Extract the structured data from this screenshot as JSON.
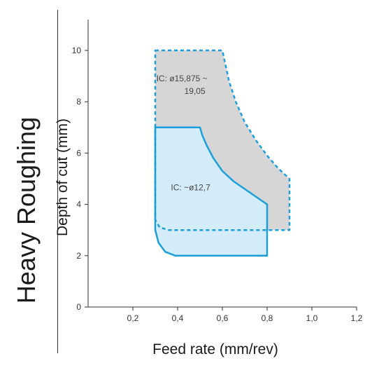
{
  "side_title": "Heavy Roughing",
  "chart_data": {
    "type": "area",
    "xlabel": "Feed rate (mm/rev)",
    "ylabel": "Depth of cut (mm)",
    "xlim": [
      0,
      1.2
    ],
    "ylim": [
      0,
      11.2
    ],
    "x_ticks": [
      0.2,
      0.4,
      0.6,
      0.8,
      1.0,
      1.2
    ],
    "x_tick_labels": [
      "0,2",
      "0,4",
      "0,6",
      "0,8",
      "1,0",
      "1,2"
    ],
    "y_ticks": [
      0,
      2,
      4,
      6,
      8,
      10
    ],
    "y_tick_labels": [
      "0",
      "2",
      "4",
      "6",
      "8",
      "10"
    ],
    "grid": false,
    "regions": [
      {
        "label_lines": [
          "IC: ø15,875 ~",
          "19,05"
        ],
        "fill": "#d6d6d6",
        "stroke": "#1a9fdb",
        "stroke_style": "dashed",
        "boundary": [
          {
            "x": 0.3,
            "y": 10.0
          },
          {
            "x": 0.6,
            "y": 10.0
          },
          {
            "x": 0.61,
            "y": 9.6
          },
          {
            "x": 0.63,
            "y": 8.8
          },
          {
            "x": 0.66,
            "y": 8.0
          },
          {
            "x": 0.7,
            "y": 7.2
          },
          {
            "x": 0.75,
            "y": 6.5
          },
          {
            "x": 0.8,
            "y": 5.9
          },
          {
            "x": 0.85,
            "y": 5.4
          },
          {
            "x": 0.9,
            "y": 5.0
          },
          {
            "x": 0.9,
            "y": 3.0
          },
          {
            "x": 0.36,
            "y": 3.0
          },
          {
            "x": 0.32,
            "y": 3.1
          },
          {
            "x": 0.3,
            "y": 3.4
          },
          {
            "x": 0.3,
            "y": 10.0
          }
        ]
      },
      {
        "label_lines": [
          "IC: ~ø12,7"
        ],
        "fill": "#d4ecf9",
        "stroke": "#1a9fdb",
        "stroke_style": "solid",
        "boundary": [
          {
            "x": 0.3,
            "y": 7.0
          },
          {
            "x": 0.5,
            "y": 7.0
          },
          {
            "x": 0.51,
            "y": 6.7
          },
          {
            "x": 0.53,
            "y": 6.3
          },
          {
            "x": 0.56,
            "y": 5.8
          },
          {
            "x": 0.6,
            "y": 5.3
          },
          {
            "x": 0.65,
            "y": 4.9
          },
          {
            "x": 0.7,
            "y": 4.6
          },
          {
            "x": 0.75,
            "y": 4.3
          },
          {
            "x": 0.8,
            "y": 4.0
          },
          {
            "x": 0.8,
            "y": 2.0
          },
          {
            "x": 0.39,
            "y": 2.0
          },
          {
            "x": 0.345,
            "y": 2.15
          },
          {
            "x": 0.315,
            "y": 2.5
          },
          {
            "x": 0.3,
            "y": 3.0
          },
          {
            "x": 0.3,
            "y": 7.0
          }
        ]
      }
    ]
  }
}
